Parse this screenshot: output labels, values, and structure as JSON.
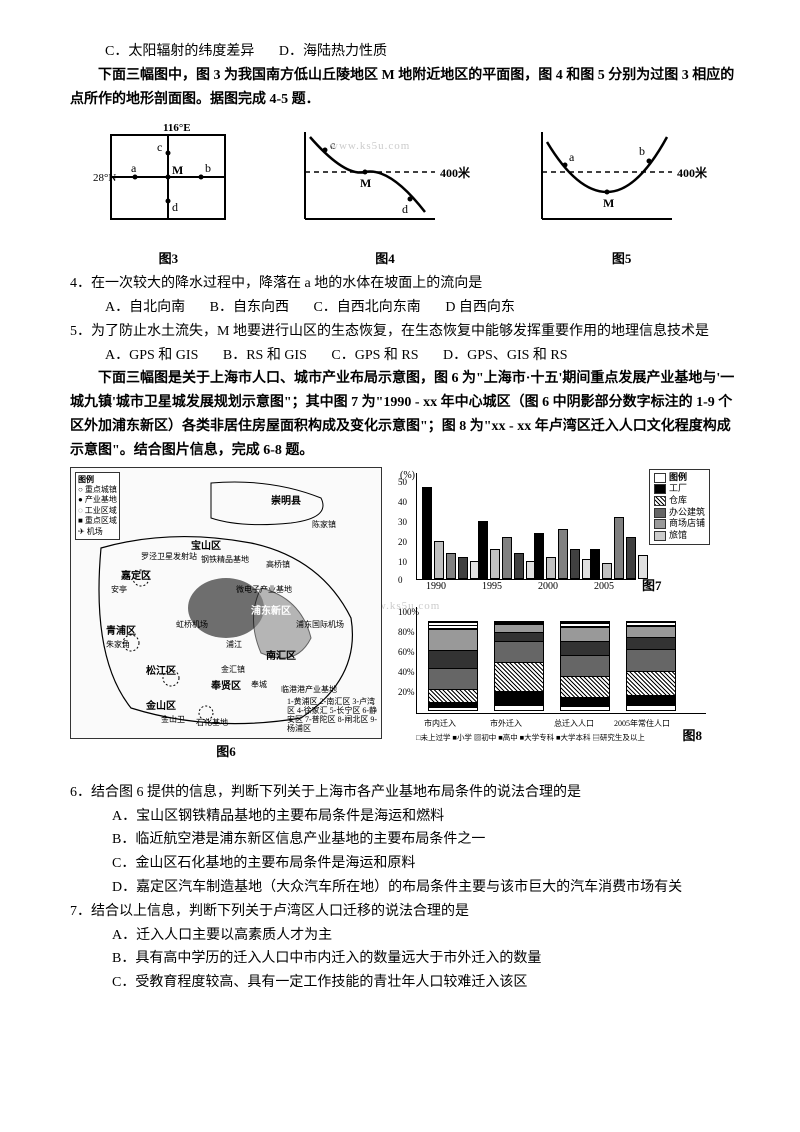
{
  "q3_options": {
    "c": "C．太阳辐射的纬度差异",
    "d": "D．海陆热力性质"
  },
  "intro45": "下面三幅图中，图 3 为我国南方低山丘陵地区 M 地附近地区的平面图，图 4 和图 5 分别为过图 3 相应的点所作的地形剖面图。据图完成 4-5 题．",
  "fig3": {
    "lon": "116°E",
    "lat": "28°N",
    "pts": {
      "a": "a",
      "b": "b",
      "c": "c",
      "d": "d",
      "m": "M"
    },
    "cap": "图3"
  },
  "fig4": {
    "pts": {
      "c": "c",
      "m": "M",
      "d": "d"
    },
    "alt": "400米",
    "cap": "图4"
  },
  "fig5": {
    "pts": {
      "a": "a",
      "b": "b",
      "m": "M"
    },
    "alt": "400米",
    "cap": "图5"
  },
  "watermark": "www.ks5u.com",
  "q4": {
    "stem": "4．在一次较大的降水过程中，降落在 a 地的水体在坡面上的流向是",
    "a": "A．自北向南",
    "b": "B．自东向西",
    "c": "C．自西北向东南",
    "d": "D 自西向东"
  },
  "q5": {
    "stem": "5．为了防止水土流失，M 地要进行山区的生态恢复，在生态恢复中能够发挥重要作用的地理信息技术是",
    "a": "A．GPS 和 GIS",
    "b": "B．RS 和 GIS",
    "c": "C．GPS 和 RS",
    "d": "D．GPS、GIS 和 RS"
  },
  "intro68": "下面三幅图是关于上海市人口、城市产业布局示意图，图 6 为\"上海市·十五'期间重点发展产业基地与'一城九镇'城市卫星城发展规划示意图\"；其中图 7 为\"1990 - xx 年中心城区（图 6 中阴影部分数字标注的 1-9 个区外加浦东新区）各类非居住房屋面积构成及变化示意图\"；图 8 为\"xx - xx 年卢湾区迁入人口文化程度构成示意图\"。结合图片信息，完成 6-8 题。",
  "fig6": {
    "cap": "图6",
    "legend_title": "图例",
    "legend": [
      "重点城镇",
      "产业基地",
      "工业区域",
      "重点区域",
      "机场"
    ],
    "labels": [
      "崇明县",
      "陈家镇",
      "宝山区",
      "罗泾卫星发射站",
      "钢铁精品基地",
      "高桥镇",
      "嘉定区",
      "安亭",
      "微电子产业基地",
      "浦东新区",
      "浦东国际机场",
      "青浦区",
      "朱家角",
      "浦江",
      "南汇区",
      "金汇镇",
      "奉贤区",
      "松江区",
      "奉城",
      "临港港产业基地",
      "金山区",
      "金山卫",
      "虹桥机场",
      "石化基地"
    ],
    "districts": "1-黄浦区  2-南汇区  3-卢湾区  4-徐家汇  5-长宁区  6-静安区  7-普陀区  8-闸北区  9-杨浦区"
  },
  "fig7": {
    "cap": "图7",
    "ylabel": "(%)",
    "ymax": 50,
    "yticks": [
      0,
      10,
      20,
      30,
      40,
      50
    ],
    "xticks": [
      "1990",
      "1995",
      "2000",
      "2005"
    ],
    "legend_title": "图例",
    "series": [
      "工厂",
      "仓库",
      "办公建筑",
      "商场店铺",
      "旅馆"
    ],
    "data": {
      "1990": [
        45,
        18,
        12,
        10,
        8
      ],
      "1995": [
        28,
        14,
        20,
        12,
        8
      ],
      "2000": [
        22,
        10,
        24,
        14,
        9
      ],
      "2005": [
        14,
        7,
        30,
        20,
        11
      ]
    },
    "colors": [
      "#000000",
      "#c0c0c0",
      "#808080",
      "#404040",
      "#e0e0e0"
    ]
  },
  "fig8": {
    "cap": "图8",
    "ymax": 100,
    "yticks": [
      "20%",
      "40%",
      "60%",
      "80%",
      "100%"
    ],
    "xticks": [
      "市内迁入",
      "市外迁入",
      "总迁入人口",
      "2005年常住人口"
    ],
    "series": [
      "未上过学",
      "小学",
      "初中",
      "高中",
      "大学专科",
      "大学本科",
      "研究生及以上"
    ],
    "data": {
      "a": [
        2,
        5,
        15,
        25,
        20,
        25,
        8
      ],
      "b": [
        5,
        15,
        35,
        25,
        10,
        8,
        2
      ],
      "c": [
        3,
        10,
        25,
        25,
        15,
        17,
        5
      ],
      "d": [
        4,
        12,
        28,
        26,
        13,
        13,
        4
      ]
    }
  },
  "q6": {
    "stem": "6．结合图 6 提供的信息，判断下列关于上海市各产业基地布局条件的说法合理的是",
    "a": "A．宝山区钢铁精品基地的主要布局条件是海运和燃料",
    "b": "B．临近航空港是浦东新区信息产业基地的主要布局条件之一",
    "c": "C．金山区石化基地的主要布局条件是海运和原料",
    "d": "D．嘉定区汽车制造基地（大众汽车所在地）的布局条件主要与该市巨大的汽车消费市场有关"
  },
  "q7": {
    "stem": "7．结合以上信息，判断下列关于卢湾区人口迁移的说法合理的是",
    "a": "A．迁入人口主要以高素质人才为主",
    "b": "B．具有高中学历的迁入人口中市内迁入的数量远大于市外迁入的数量",
    "c": "C．受教育程度较高、具有一定工作技能的青壮年人口较难迁入该区"
  }
}
